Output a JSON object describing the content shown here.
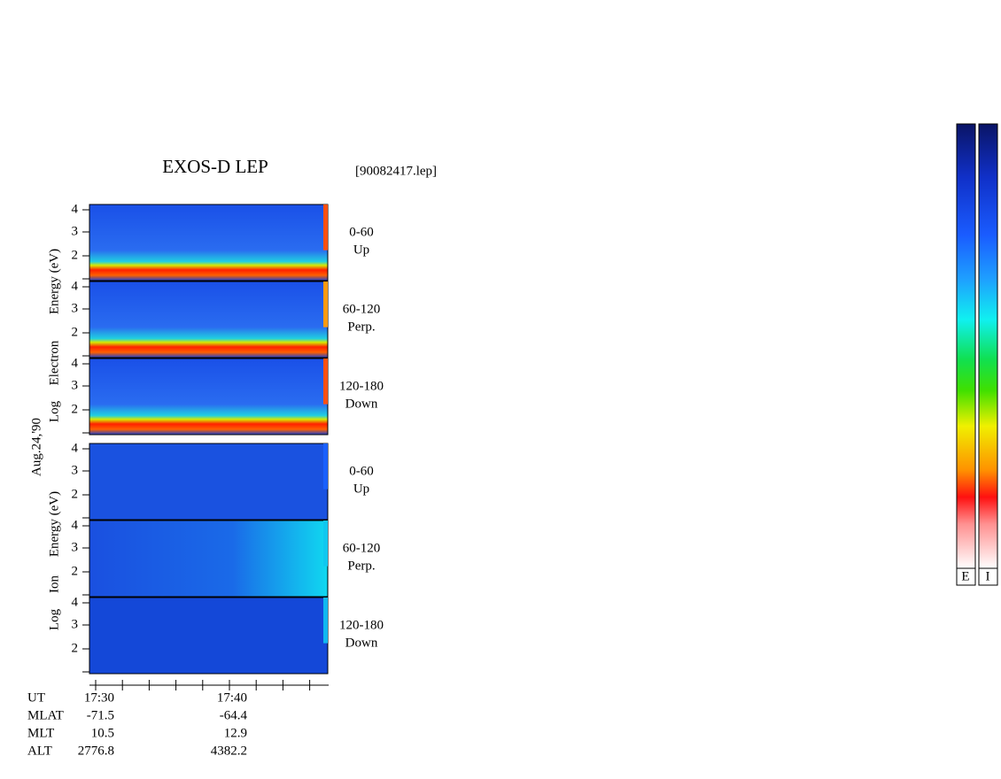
{
  "title": "EXOS-D LEP",
  "file": "[90082417.lep]",
  "date": "Aug.24,'90",
  "electron": {
    "label": [
      "Log",
      "Electron",
      "Energy (eV)"
    ],
    "panels": [
      {
        "range": "0-60",
        "dir": "Up"
      },
      {
        "range": "60-120",
        "dir": "Perp."
      },
      {
        "range": "120-180",
        "dir": "Down"
      }
    ]
  },
  "ion": {
    "label": [
      "Log",
      "Ion",
      "Energy (eV)"
    ],
    "panels": [
      {
        "range": "0-60",
        "dir": "Up"
      },
      {
        "range": "60-120",
        "dir": "Perp."
      },
      {
        "range": "120-180",
        "dir": "Down"
      }
    ]
  },
  "yticks": [
    4,
    3,
    2
  ],
  "time_table": {
    "rows": [
      [
        "UT",
        "17:30",
        "17:40"
      ],
      [
        "MLAT",
        "-71.5",
        "-64.4"
      ],
      [
        "MLT",
        "10.5",
        "12.9"
      ],
      [
        "ALT",
        "2776.8",
        "4382.2"
      ]
    ]
  },
  "colorbar_labels": [
    "E",
    "I"
  ]
}
